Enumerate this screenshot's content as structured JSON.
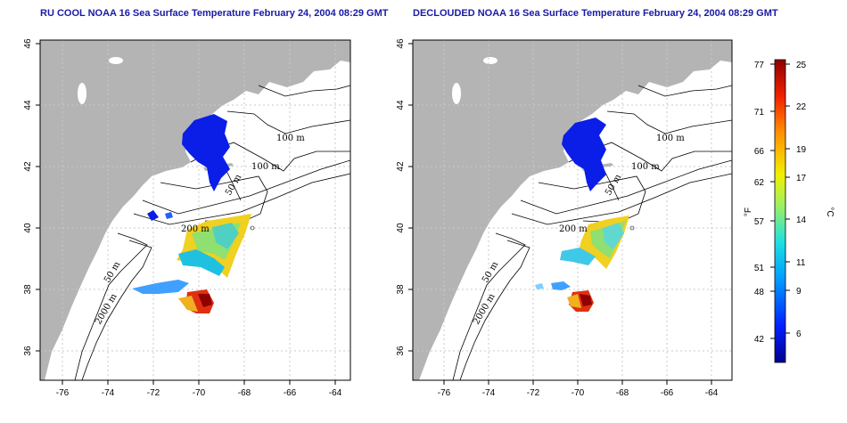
{
  "panels": [
    {
      "title": "RU COOL NOAA 16 Sea Surface Temperature February 24, 2004 08:29 GMT",
      "contour_labels": [
        "100 m",
        "100 m",
        "50 m",
        "200 m",
        "50 m",
        "2000 m"
      ]
    },
    {
      "title": "DECLOUDED NOAA 16 Sea Surface Temperature February 24, 2004 08:29 GMT",
      "contour_labels": [
        "100 m",
        "100 m",
        "50 m",
        "200 m",
        "50 m",
        "2000 m"
      ]
    }
  ],
  "axes": {
    "x_ticks": [
      "-76",
      "-74",
      "-72",
      "-70",
      "-68",
      "-66",
      "-64"
    ],
    "y_ticks": [
      "36",
      "38",
      "40",
      "42",
      "44",
      "46"
    ]
  },
  "colorbar": {
    "unit_left": "°F",
    "unit_right": "°C",
    "f_ticks": [
      "77",
      "71",
      "66",
      "62",
      "57",
      "51",
      "48",
      "42"
    ],
    "c_ticks": [
      "25",
      "22",
      "19",
      "17",
      "14",
      "11",
      "9",
      "6"
    ],
    "colors": [
      "#00008f",
      "#0020ff",
      "#00a0ff",
      "#20e0e0",
      "#a0f060",
      "#f0f000",
      "#ff9000",
      "#f02000",
      "#8f0000"
    ]
  },
  "colors": {
    "land": "#b4b4b4",
    "ocean": "#ffffff",
    "title": "#1a1aa6",
    "grid": "#c8c8c8"
  }
}
